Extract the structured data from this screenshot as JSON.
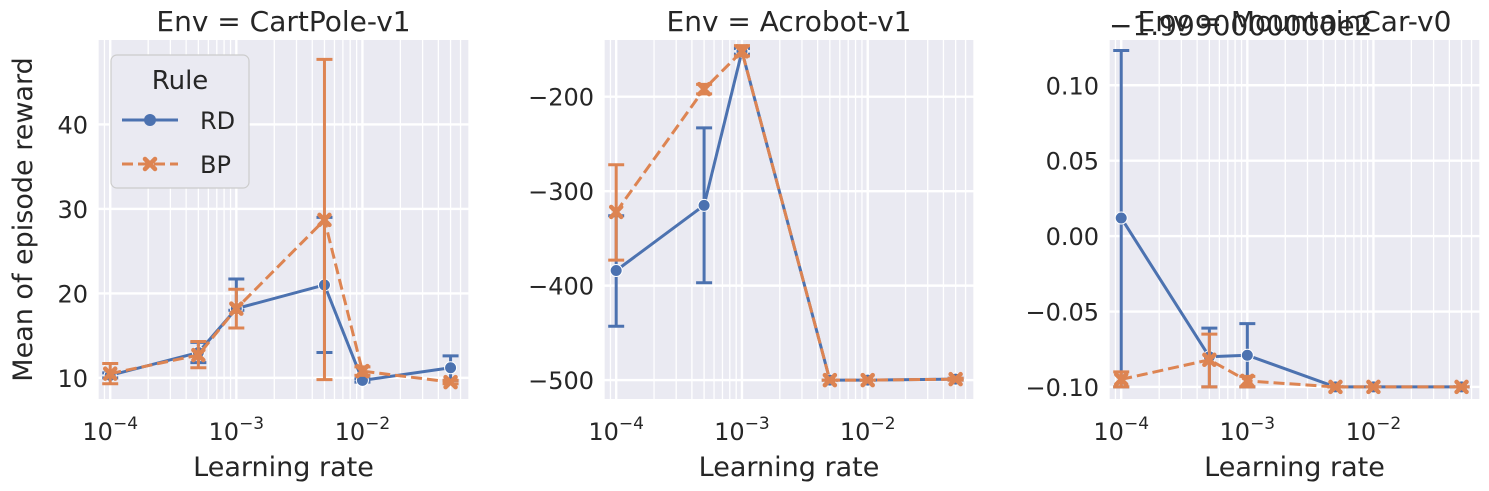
{
  "chart_data": [
    {
      "type": "line",
      "title": "Env = CartPole-v1",
      "xlabel": "Learning rate",
      "ylabel": "Mean of episode reward",
      "xscale": "log",
      "xlim": [
        8e-05,
        0.07
      ],
      "ylim": [
        7.5,
        50
      ],
      "xticks": [
        0.0001,
        0.001,
        0.01
      ],
      "xtick_labels": [
        [
          "10",
          "−4"
        ],
        [
          "10",
          "−3"
        ],
        [
          "10",
          "−2"
        ]
      ],
      "yticks": [
        10,
        20,
        30,
        40
      ],
      "ytick_labels": [
        "10",
        "20",
        "30",
        "40"
      ],
      "offset_text": "",
      "grid": true,
      "legend": {
        "title": "Rule",
        "location": "upper-left",
        "entries": [
          "RD",
          "BP"
        ]
      },
      "x": [
        0.0001,
        0.0005,
        0.001,
        0.005,
        0.01,
        0.05
      ],
      "series": [
        {
          "name": "RD",
          "style": "solid",
          "marker": "circle",
          "values": [
            10.3,
            13.0,
            18.2,
            21.0,
            9.7,
            11.2
          ],
          "err_low": [
            10.0,
            11.8,
            18.0,
            13.0,
            9.5,
            9.7
          ],
          "err_high": [
            10.6,
            14.2,
            21.7,
            29.0,
            9.9,
            12.6
          ]
        },
        {
          "name": "BP",
          "style": "dashed",
          "marker": "x",
          "values": [
            10.5,
            12.7,
            18.2,
            28.7,
            10.8,
            9.5
          ],
          "err_low": [
            9.3,
            11.2,
            15.9,
            9.8,
            10.3,
            9.3
          ],
          "err_high": [
            11.7,
            14.3,
            20.5,
            47.7,
            11.3,
            9.7
          ]
        }
      ]
    },
    {
      "type": "line",
      "title": "Env = Acrobot-v1",
      "xlabel": "Learning rate",
      "ylabel": "",
      "xscale": "log",
      "xlim": [
        8e-05,
        0.07
      ],
      "ylim": [
        -520,
        -140
      ],
      "xticks": [
        0.0001,
        0.001,
        0.01
      ],
      "xtick_labels": [
        [
          "10",
          "−4"
        ],
        [
          "10",
          "−3"
        ],
        [
          "10",
          "−2"
        ]
      ],
      "yticks": [
        -500,
        -400,
        -300,
        -200
      ],
      "ytick_labels": [
        "−500",
        "−400",
        "−300",
        "−200"
      ],
      "offset_text": "",
      "grid": true,
      "x": [
        0.0001,
        0.0005,
        0.001,
        0.005,
        0.01,
        0.05
      ],
      "series": [
        {
          "name": "RD",
          "style": "solid",
          "marker": "circle",
          "values": [
            -384,
            -315,
            -152,
            -500,
            -500,
            -499
          ],
          "err_low": [
            -443,
            -397,
            -155,
            -500,
            -500,
            -500
          ],
          "err_high": [
            -326,
            -233,
            -149,
            -500,
            -500,
            -498
          ]
        },
        {
          "name": "BP",
          "style": "dashed",
          "marker": "x",
          "values": [
            -322,
            -192,
            -152,
            -500,
            -500,
            -499
          ],
          "err_low": [
            -373,
            -197,
            -157,
            -500,
            -500,
            -500
          ],
          "err_high": [
            -272,
            -187,
            -146,
            -500,
            -500,
            -498
          ]
        }
      ]
    },
    {
      "type": "line",
      "title": "Env = MountainCar-v0",
      "xlabel": "Learning rate",
      "ylabel": "",
      "xscale": "log",
      "xlim": [
        8e-05,
        0.07
      ],
      "ylim": [
        -0.108,
        0.13
      ],
      "xticks": [
        0.0001,
        0.001,
        0.01
      ],
      "xtick_labels": [
        [
          "10",
          "−4"
        ],
        [
          "10",
          "−3"
        ],
        [
          "10",
          "−2"
        ]
      ],
      "yticks": [
        -0.1,
        -0.05,
        0.0,
        0.05,
        0.1
      ],
      "ytick_labels": [
        "−0.10",
        "−0.05",
        "0.00",
        "0.05",
        "0.10"
      ],
      "offset_text": "−1.9990000000e2",
      "grid": true,
      "x": [
        0.0001,
        0.0005,
        0.001,
        0.005,
        0.01,
        0.05
      ],
      "series": [
        {
          "name": "RD",
          "style": "solid",
          "marker": "circle",
          "values": [
            0.012,
            -0.08,
            -0.079,
            -0.1,
            -0.1,
            -0.1
          ],
          "err_low": [
            -0.1,
            -0.1,
            -0.1,
            -0.1,
            -0.1,
            -0.1
          ],
          "err_high": [
            0.123,
            -0.061,
            -0.058,
            -0.1,
            -0.1,
            -0.1
          ]
        },
        {
          "name": "BP",
          "style": "dashed",
          "marker": "x",
          "values": [
            -0.095,
            -0.082,
            -0.096,
            -0.1,
            -0.1,
            -0.1
          ],
          "err_low": [
            -0.1,
            -0.1,
            -0.1,
            -0.1,
            -0.1,
            -0.1
          ],
          "err_high": [
            -0.09,
            -0.065,
            -0.093,
            -0.1,
            -0.1,
            -0.1
          ]
        }
      ]
    }
  ],
  "colors": {
    "background": "#eaeaf2",
    "grid": "#ffffff",
    "RD": "#4c72b0",
    "BP": "#dd8452",
    "text": "#262626"
  }
}
